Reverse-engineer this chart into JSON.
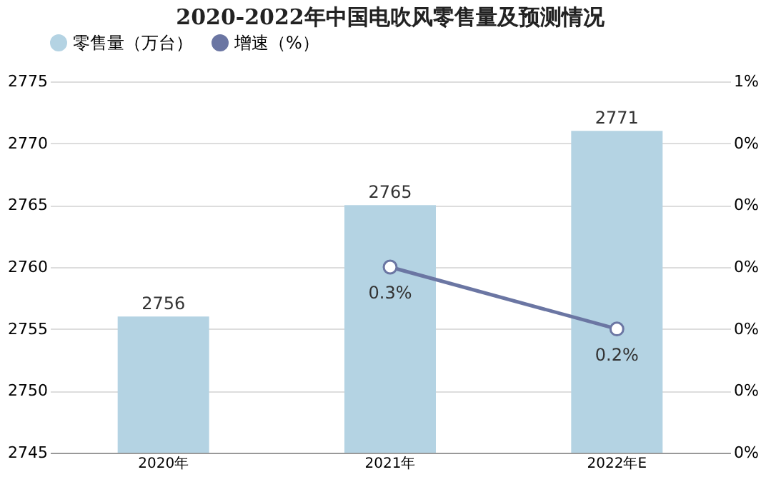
{
  "chart_data": {
    "type": "bar",
    "title": "2020-2022年中国电吹风零售量及预测情况",
    "categories": [
      "2020年",
      "2021年",
      "2022年E"
    ],
    "series": [
      {
        "name": "零售量（万台）",
        "color": "#b4d3e3",
        "values": [
          2756,
          2765,
          2771
        ]
      },
      {
        "name": "增速（%）",
        "type": "line",
        "axis": "y2",
        "color": "#6b76a3",
        "marker": "circle",
        "values": [
          null,
          0.3,
          0.2
        ],
        "value_labels": [
          null,
          "0.3%",
          "0.2%"
        ]
      }
    ],
    "data_labels": true,
    "ylim": [
      2745,
      2775
    ],
    "yticks": [
      2745,
      2750,
      2755,
      2760,
      2765,
      2770,
      2775
    ],
    "y2lim": [
      0,
      0.6
    ],
    "y2ticks": [
      {
        "value": 0,
        "label": "0%"
      },
      {
        "value": 0.1,
        "label": "0%"
      },
      {
        "value": 0.2,
        "label": "0%"
      },
      {
        "value": 0.3,
        "label": "0%"
      },
      {
        "value": 0.4,
        "label": "0%"
      },
      {
        "value": 0.5,
        "label": "0%"
      },
      {
        "value": 0.6,
        "label": "1%"
      }
    ],
    "grid": "y",
    "legend": "top"
  }
}
